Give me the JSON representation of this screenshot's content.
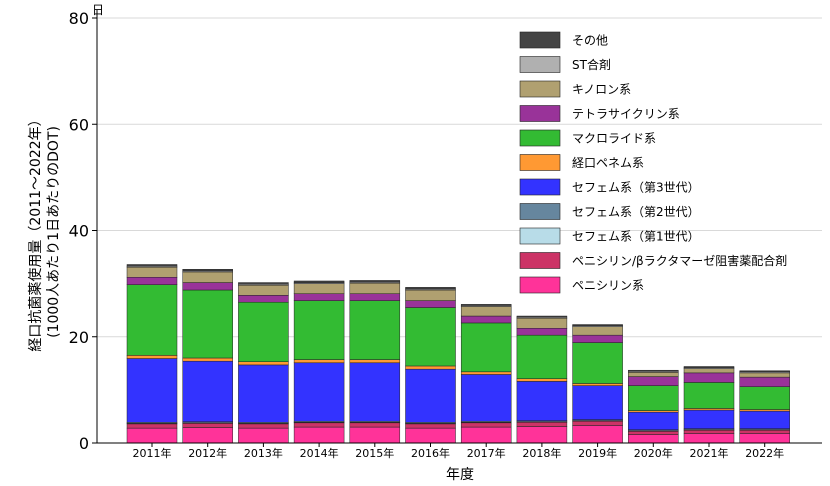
{
  "chart_data": {
    "type": "bar",
    "stacked": true,
    "xlabel": "年度",
    "ylabel_lines": [
      "経口抗菌薬使用量（2011～2022年）",
      "(1000人あたり1日あたりのDOT)"
    ],
    "y_unit": "日",
    "ylim": [
      0,
      80
    ],
    "yticks": [
      0,
      20,
      40,
      60,
      80
    ],
    "grid": true,
    "legend_position": "top-right",
    "categories": [
      "2011年",
      "2012年",
      "2013年",
      "2014年",
      "2015年",
      "2016年",
      "2017年",
      "2018年",
      "2019年",
      "2020年",
      "2021年",
      "2022年"
    ],
    "series": [
      {
        "name": "ペニシリン系",
        "color": "#ff3399",
        "values": [
          2.8,
          2.9,
          2.8,
          3.0,
          3.0,
          2.8,
          3.0,
          3.1,
          3.3,
          1.6,
          1.8,
          1.8
        ]
      },
      {
        "name": "ペニシリン/βラクタマーゼ阻害薬配合剤",
        "color": "#cc3366",
        "values": [
          0.8,
          0.8,
          0.8,
          0.8,
          0.8,
          0.8,
          0.8,
          0.8,
          0.8,
          0.6,
          0.6,
          0.6
        ]
      },
      {
        "name": "セフェム系（第1世代）",
        "color": "#b8dce8",
        "values": [
          0.1,
          0.1,
          0.1,
          0.1,
          0.1,
          0.1,
          0.1,
          0.1,
          0.1,
          0.1,
          0.1,
          0.1
        ]
      },
      {
        "name": "セフェム系（第2世代）",
        "color": "#66869e",
        "values": [
          0.2,
          0.2,
          0.2,
          0.2,
          0.2,
          0.2,
          0.2,
          0.2,
          0.2,
          0.2,
          0.2,
          0.2
        ]
      },
      {
        "name": "セフェム系（第3世代）",
        "color": "#3333ff",
        "values": [
          12.0,
          11.4,
          10.8,
          11.0,
          11.0,
          10.0,
          8.8,
          7.4,
          6.4,
          3.3,
          3.5,
          3.3
        ]
      },
      {
        "name": "経口ペネム系",
        "color": "#ff9933",
        "values": [
          0.6,
          0.6,
          0.6,
          0.6,
          0.6,
          0.6,
          0.5,
          0.5,
          0.4,
          0.3,
          0.3,
          0.3
        ]
      },
      {
        "name": "マクロライド系",
        "color": "#33bb33",
        "values": [
          13.3,
          12.8,
          11.2,
          11.1,
          11.1,
          11.0,
          9.2,
          8.2,
          7.7,
          4.7,
          4.9,
          4.3
        ]
      },
      {
        "name": "テトラサイクリン系",
        "color": "#993399",
        "values": [
          1.4,
          1.4,
          1.3,
          1.3,
          1.3,
          1.3,
          1.3,
          1.3,
          1.4,
          1.7,
          1.8,
          1.8
        ]
      },
      {
        "name": "キノロン系",
        "color": "#b0a070",
        "values": [
          1.9,
          2.0,
          1.9,
          1.9,
          2.0,
          2.0,
          1.8,
          1.9,
          1.6,
          0.8,
          0.8,
          0.8
        ]
      },
      {
        "name": "ST合剤",
        "color": "#b0b0b0",
        "values": [
          0.2,
          0.2,
          0.2,
          0.2,
          0.2,
          0.2,
          0.2,
          0.2,
          0.2,
          0.2,
          0.2,
          0.2
        ]
      },
      {
        "name": "その他",
        "color": "#444444",
        "values": [
          0.3,
          0.3,
          0.3,
          0.3,
          0.3,
          0.3,
          0.2,
          0.2,
          0.2,
          0.2,
          0.2,
          0.2
        ]
      }
    ]
  }
}
